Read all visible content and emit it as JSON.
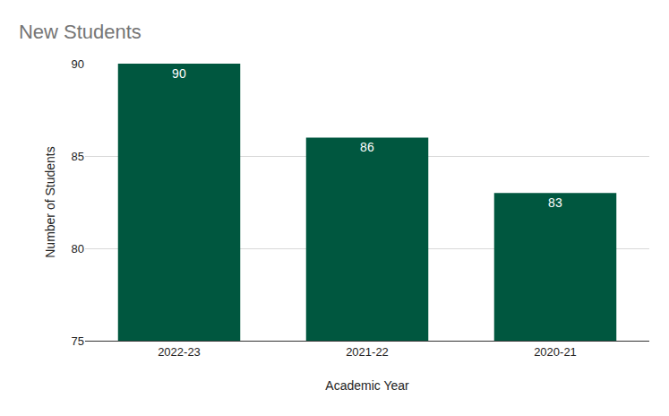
{
  "chart_data": {
    "type": "bar",
    "title": "New Students",
    "x_label": "Academic Year",
    "y_label": "Number of Students",
    "categories": [
      "2022-23",
      "2021-22",
      "2020-21"
    ],
    "values": [
      90,
      86,
      83
    ],
    "color": "#00573f",
    "ylim": [
      75,
      90
    ],
    "yticks": [
      75,
      80,
      85,
      90
    ],
    "grid": true,
    "data_labels": true
  }
}
